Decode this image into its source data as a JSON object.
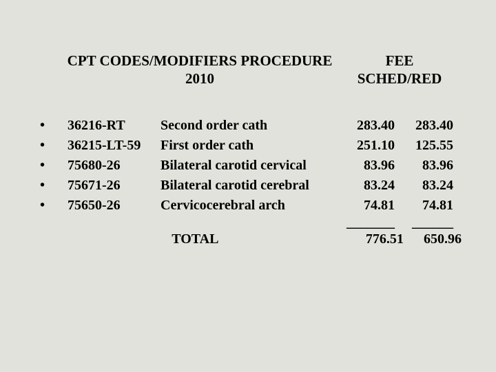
{
  "heading": {
    "left_line1": "CPT CODES/MODIFIERS PROCEDURE",
    "left_line2": "2010",
    "right": "FEE SCHED/RED"
  },
  "rows": [
    {
      "code": "36216-RT",
      "desc": "Second order cath",
      "fee1": "283.40",
      "fee2": "283.40"
    },
    {
      "code": "36215-LT-59",
      "desc": "First order cath",
      "fee1": "251.10",
      "fee2": "125.55"
    },
    {
      "code": "75680-26",
      "desc": "Bilateral carotid cervical",
      "fee1": "83.96",
      "fee2": "83.96"
    },
    {
      "code": "75671-26",
      "desc": "Bilateral carotid cerebral",
      "fee1": "83.24",
      "fee2": "83.24"
    },
    {
      "code": "75650-26",
      "desc": "Cervicocerebral arch",
      "fee1": "74.81",
      "fee2": "74.81"
    }
  ],
  "divider": {
    "rule1": "_______",
    "rule2": "______"
  },
  "total": {
    "label": "TOTAL",
    "fee1": "776.51",
    "fee2": "650.96"
  },
  "bullet_char": "•",
  "colors": {
    "background": "#e2e2dc",
    "text": "#000000"
  },
  "typography": {
    "font_family": "Times New Roman",
    "heading_fontsize_pt": 16,
    "body_fontsize_pt": 15,
    "weight": "bold"
  }
}
